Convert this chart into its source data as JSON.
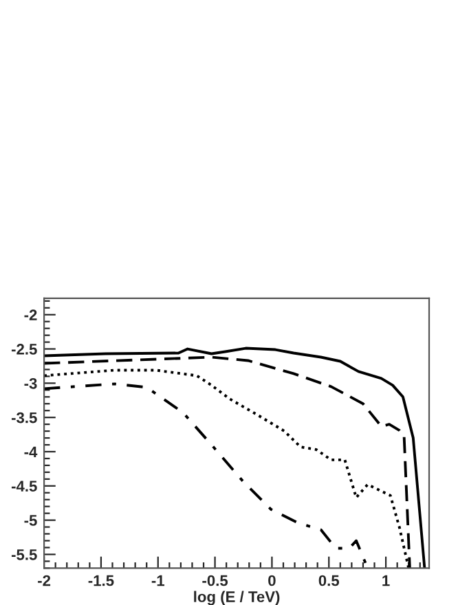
{
  "chart_data": {
    "type": "line",
    "xlabel": "log (E / TeV)",
    "xlim": [
      -2,
      1.38
    ],
    "ylim": [
      -5.7,
      -1.76
    ],
    "xticks": [
      -2,
      -1.5,
      -1,
      -0.5,
      0,
      0.5,
      1
    ],
    "yticks": [
      -2,
      -2.5,
      -3,
      -3.5,
      -4,
      -4.5,
      -5,
      -5.5
    ],
    "grid": false,
    "marker": "none",
    "series": [
      {
        "color": "#000000",
        "line_style": "solid",
        "x": [
          -2,
          -1.46,
          -0.82,
          -0.74,
          -0.53,
          -0.41,
          -0.23,
          0.03,
          0.19,
          0.43,
          0.6,
          0.76,
          0.96,
          1.06,
          1.15,
          1.24,
          1.34
        ],
        "values": [
          -2.6,
          -2.57,
          -2.56,
          -2.5,
          -2.57,
          -2.54,
          -2.49,
          -2.51,
          -2.56,
          -2.62,
          -2.68,
          -2.83,
          -2.93,
          -3.03,
          -3.2,
          -3.8,
          -5.7
        ]
      },
      {
        "color": "#000000",
        "line_style": "dashed",
        "x": [
          -2,
          -1.18,
          -0.53,
          -0.21,
          0.19,
          0.52,
          0.8,
          0.96,
          1.03,
          1.12,
          1.16,
          1.21
        ],
        "values": [
          -2.71,
          -2.66,
          -2.62,
          -2.67,
          -2.86,
          -3.05,
          -3.3,
          -3.63,
          -3.6,
          -3.69,
          -3.77,
          -5.7
        ]
      },
      {
        "color": "#000000",
        "line_style": "dotted",
        "x": [
          -2,
          -1.38,
          -1.02,
          -0.66,
          -0.53,
          -0.37,
          -0.13,
          0.11,
          0.25,
          0.39,
          0.52,
          0.64,
          0.74,
          0.84,
          1.04,
          1.12,
          1.2
        ],
        "values": [
          -2.89,
          -2.81,
          -2.81,
          -2.89,
          -3.03,
          -3.23,
          -3.46,
          -3.7,
          -3.93,
          -3.97,
          -4.12,
          -4.12,
          -4.67,
          -4.48,
          -4.64,
          -5.11,
          -5.7
        ]
      },
      {
        "color": "#000000",
        "line_style": "dashdot",
        "x": [
          -2,
          -1.38,
          -1.1,
          -0.78,
          -0.53,
          -0.25,
          -0.01,
          0.23,
          0.43,
          0.56,
          0.68,
          0.74,
          0.84
        ],
        "values": [
          -3.08,
          -3.01,
          -3.06,
          -3.43,
          -3.9,
          -4.44,
          -4.84,
          -5.04,
          -5.14,
          -5.41,
          -5.41,
          -5.3,
          -5.7
        ]
      }
    ]
  }
}
